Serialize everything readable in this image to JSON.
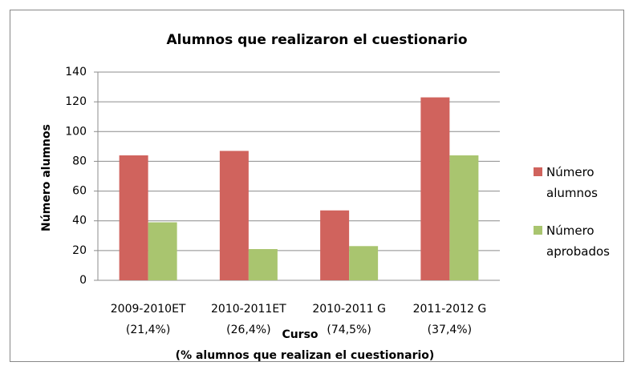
{
  "chart_data": {
    "type": "bar",
    "title": "Alumnos que realizaron el cuestionario",
    "categories": [
      [
        "2009-2010ET",
        "(21,4%)"
      ],
      [
        "2010-2011ET",
        "(26,4%)"
      ],
      [
        "2010-2011 G",
        "(74,5%)"
      ],
      [
        "2011-2012 G",
        "(37,4%)"
      ]
    ],
    "series": [
      {
        "name": "Número alumnos",
        "color": "#d0635d",
        "values": [
          84,
          87,
          47,
          123
        ]
      },
      {
        "name": "Número aprobados",
        "color": "#a9c56f",
        "values": [
          39,
          21,
          23,
          84
        ]
      }
    ],
    "xlabel": [
      "Curso",
      "(% alumnos que realizan el cuestionario)"
    ],
    "ylabel": "Número alumnos",
    "ylim": [
      0,
      140
    ],
    "yticks": [
      0,
      20,
      40,
      60,
      80,
      100,
      120,
      140
    ],
    "grid": true,
    "legend": "right"
  }
}
